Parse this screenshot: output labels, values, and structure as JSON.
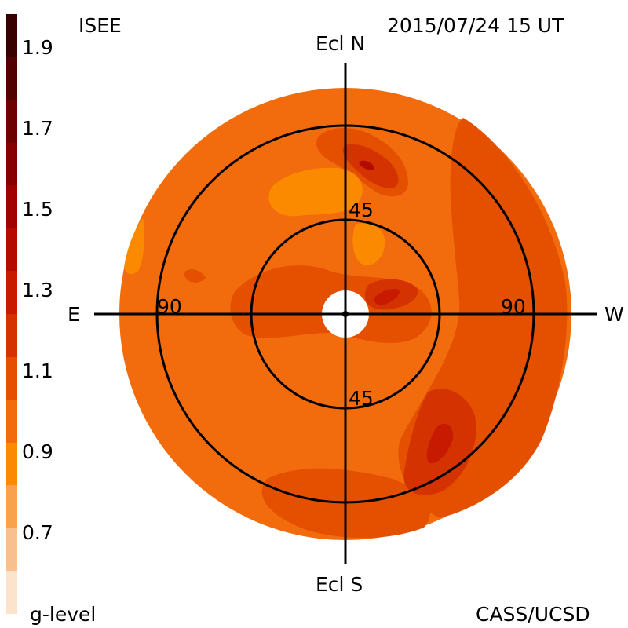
{
  "header": {
    "source": "ISEE",
    "timestamp": "2015/07/24 15 UT",
    "credit": "CASS/UCSD"
  },
  "colorbar": {
    "title": "g-level",
    "tick_labels": [
      "1.9",
      "1.7",
      "1.5",
      "1.3",
      "1.1",
      "0.9",
      "0.7"
    ],
    "range": [
      0.6,
      2.0
    ],
    "step": 0.1,
    "colors": [
      "#fbe3cc",
      "#f7c08e",
      "#f9a24d",
      "#fb8a00",
      "#f26c0d",
      "#e44f00",
      "#d43200",
      "#c81a00",
      "#b40a00",
      "#a00000",
      "#860000",
      "#6e0000",
      "#530000",
      "#380000"
    ]
  },
  "axes": {
    "north": "Ecl N",
    "south": "Ecl S",
    "east": "E",
    "west": "W",
    "inner_ring_top": "45",
    "inner_ring_bottom": "45",
    "outer_ring_left": "90",
    "outer_ring_right": "90"
  },
  "map": {
    "background_color": "#f26c0d",
    "features": [
      {
        "name": "north-high-lobe",
        "level": 1.2
      },
      {
        "name": "north-peak",
        "level": 1.4
      },
      {
        "name": "east-ring-band",
        "level": 1.1
      },
      {
        "name": "inner-high-lobe",
        "level": 1.3
      },
      {
        "name": "southwest-high-lobe",
        "level": 1.2
      },
      {
        "name": "southwest-peak",
        "level": 1.3
      },
      {
        "name": "west-edge-band",
        "level": 1.1
      },
      {
        "name": "south-band",
        "level": 1.1
      },
      {
        "name": "north-low-patch",
        "level": 0.9
      },
      {
        "name": "west-limb-low-patch",
        "level": 0.9
      }
    ]
  }
}
